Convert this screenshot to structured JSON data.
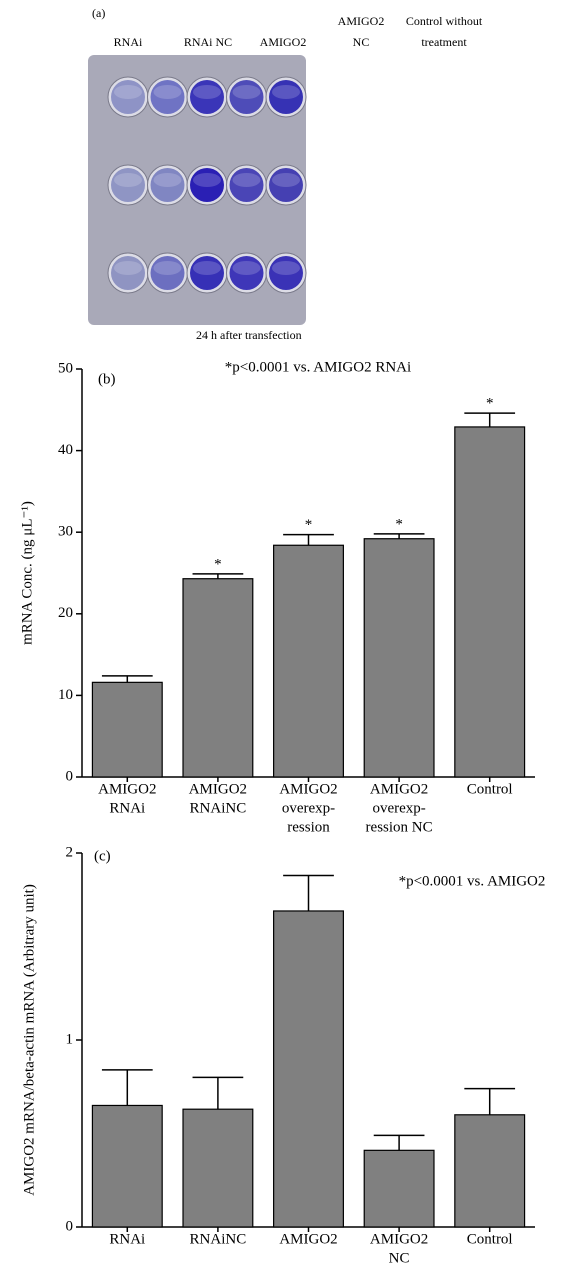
{
  "panel_a": {
    "label": "(a)",
    "columns": [
      [
        "RNAi"
      ],
      [
        "RNAi NC"
      ],
      [
        "AMIGO2"
      ],
      [
        "AMIGO2",
        "NC"
      ],
      [
        "Control without",
        "treatment"
      ]
    ],
    "caption": "24 h after transfection"
  },
  "chart_data": [
    {
      "type": "bar",
      "panel_label": "(b)",
      "subtitle": "*p<0.0001 vs. AMIGO2 RNAi",
      "ylabel": "mRNA Conc. (ng μL⁻¹)",
      "categories": [
        [
          "AMIGO2",
          "RNAi"
        ],
        [
          "AMIGO2",
          "RNAiNC"
        ],
        [
          "AMIGO2",
          "overexp-",
          "ression"
        ],
        [
          "AMIGO2",
          "overexp-",
          "ression NC"
        ],
        [
          "Control"
        ]
      ],
      "values": [
        11.6,
        24.3,
        28.4,
        29.2,
        42.9
      ],
      "errors": [
        0.8,
        0.6,
        1.3,
        0.6,
        1.7
      ],
      "significance": [
        null,
        "*",
        "*",
        "*",
        "*"
      ],
      "color": "#808080",
      "ylim": [
        0,
        50
      ],
      "yticks": [
        0,
        10,
        20,
        30,
        40,
        50
      ],
      "grid": false
    },
    {
      "type": "bar",
      "panel_label": "(c)",
      "subtitle": "*p<0.0001 vs. AMIGO2",
      "ylabel": "AMIGO2 mRNA/beta-actin mRNA (Arbitrary unit)",
      "categories": [
        [
          "RNAi"
        ],
        [
          "RNAiNC"
        ],
        [
          "AMIGO2"
        ],
        [
          "AMIGO2",
          "NC"
        ],
        [
          "Control"
        ]
      ],
      "values": [
        0.65,
        0.63,
        1.69,
        0.41,
        0.6
      ],
      "errors": [
        0.19,
        0.17,
        0.19,
        0.08,
        0.14
      ],
      "color": "#808080",
      "ylim": [
        0,
        2
      ],
      "yticks": [
        0,
        1,
        2
      ],
      "grid": false
    }
  ]
}
